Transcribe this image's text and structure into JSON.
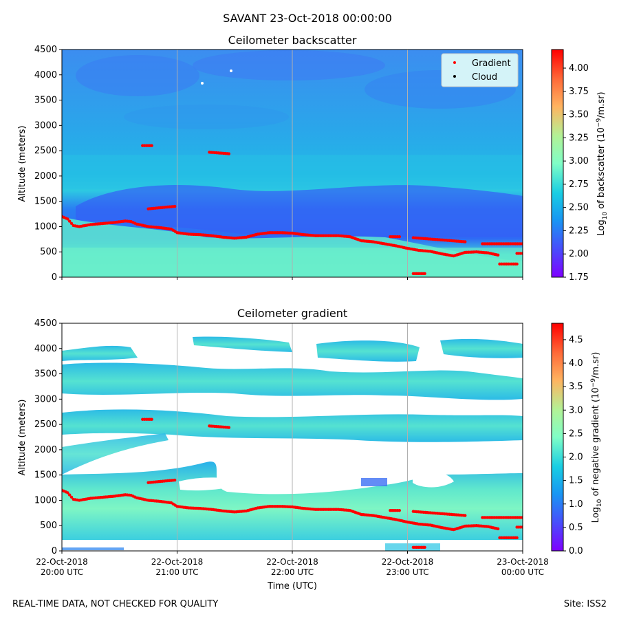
{
  "figure": {
    "title": "SAVANT 23-Oct-2018 00:00:00",
    "footer_left": "REAL-TIME DATA, NOT CHECKED FOR QUALITY",
    "footer_right": "Site: ISS2"
  },
  "chart_data": [
    {
      "type": "heatmap",
      "title": "Ceilometer backscatter",
      "ylabel": "Altitude (meters)",
      "xlabel": "",
      "xlim_hours": [
        20,
        24
      ],
      "ylim": [
        0,
        4500
      ],
      "y_ticks": [
        0,
        500,
        1000,
        1500,
        2000,
        2500,
        3000,
        3500,
        4000,
        4500
      ],
      "x_ticks": [
        {
          "hour": 20,
          "line1": "22-Oct-2018",
          "line2": "20:00 UTC"
        },
        {
          "hour": 21,
          "line1": "22-Oct-2018",
          "line2": "21:00 UTC"
        },
        {
          "hour": 22,
          "line1": "22-Oct-2018",
          "line2": "22:00 UTC"
        },
        {
          "hour": 23,
          "line1": "22-Oct-2018",
          "line2": "23:00 UTC"
        },
        {
          "hour": 24,
          "line1": "23-Oct-2018",
          "line2": "00:00 UTC"
        }
      ],
      "colorbar": {
        "label_prefix": "Log",
        "label_sub": "10",
        "label_rest": " of backscatter (10",
        "label_sup": "−9",
        "label_end": "/m.sr)",
        "range": [
          1.75,
          4.2
        ],
        "ticks": [
          "1.75",
          "2.00",
          "2.25",
          "2.50",
          "2.75",
          "3.00",
          "3.25",
          "3.50",
          "3.75",
          "4.00"
        ],
        "tick_values": [
          1.75,
          2.0,
          2.25,
          2.5,
          2.75,
          3.0,
          3.25,
          3.5,
          3.75,
          4.0
        ]
      },
      "legend": {
        "placement": "top-right",
        "entries": [
          {
            "label": "Gradient",
            "color": "#ff0000"
          },
          {
            "label": "Cloud",
            "color": "#000000"
          }
        ]
      },
      "regions": [
        {
          "name": "upper-sky",
          "t": [
            20,
            24
          ],
          "alt": [
            2300,
            4500
          ],
          "value": 2.4
        },
        {
          "name": "mid-band",
          "t": [
            20,
            24
          ],
          "alt": [
            1700,
            2300
          ],
          "value": 2.65
        },
        {
          "name": "dark-layer",
          "t": [
            20.1,
            24
          ],
          "alt": [
            1000,
            1700
          ],
          "value": 2.15
        },
        {
          "name": "boundary-layer",
          "t": [
            20,
            24
          ],
          "alt": [
            0,
            1000
          ],
          "value": 2.85
        }
      ],
      "gradient_points": [
        [
          20.0,
          1200
        ],
        [
          20.05,
          1150
        ],
        [
          20.1,
          1020
        ],
        [
          20.15,
          1000
        ],
        [
          20.25,
          1040
        ],
        [
          20.35,
          1060
        ],
        [
          20.45,
          1080
        ],
        [
          20.55,
          1110
        ],
        [
          20.6,
          1100
        ],
        [
          20.65,
          1050
        ],
        [
          20.75,
          1000
        ],
        [
          20.85,
          980
        ],
        [
          20.95,
          950
        ],
        [
          21.0,
          880
        ],
        [
          21.1,
          850
        ],
        [
          21.2,
          840
        ],
        [
          21.3,
          820
        ],
        [
          21.4,
          790
        ],
        [
          21.5,
          770
        ],
        [
          21.6,
          790
        ],
        [
          21.7,
          850
        ],
        [
          21.8,
          880
        ],
        [
          21.9,
          880
        ],
        [
          22.0,
          870
        ],
        [
          22.1,
          840
        ],
        [
          22.2,
          820
        ],
        [
          22.3,
          820
        ],
        [
          22.4,
          820
        ],
        [
          22.5,
          800
        ],
        [
          22.6,
          720
        ],
        [
          22.7,
          700
        ],
        [
          22.8,
          660
        ],
        [
          22.9,
          620
        ],
        [
          23.0,
          570
        ],
        [
          23.1,
          530
        ],
        [
          23.2,
          510
        ],
        [
          23.3,
          460
        ],
        [
          23.4,
          420
        ],
        [
          23.5,
          490
        ],
        [
          23.6,
          500
        ],
        [
          23.7,
          480
        ],
        [
          23.8,
          430
        ]
      ],
      "gradient_segments": [
        {
          "t": [
            20.7,
            20.78
          ],
          "alt": 2600
        },
        {
          "t": [
            20.75,
            20.98
          ],
          "alt": [
            1350,
            1400
          ]
        },
        {
          "t": [
            21.28,
            21.45
          ],
          "alt": [
            2470,
            2440
          ]
        },
        {
          "t": [
            22.85,
            22.93
          ],
          "alt": 800
        },
        {
          "t": [
            23.05,
            23.5
          ],
          "alt": [
            780,
            700
          ]
        },
        {
          "t": [
            23.65,
            24.0
          ],
          "alt": [
            660,
            660
          ]
        },
        {
          "t": [
            23.8,
            23.95
          ],
          "alt": 260
        },
        {
          "t": [
            23.95,
            24.0
          ],
          "alt": 470
        },
        {
          "t": [
            23.05,
            23.15
          ],
          "alt": 70
        }
      ]
    },
    {
      "type": "heatmap",
      "title": "Ceilometer gradient",
      "ylabel": "Altitude (meters)",
      "xlabel": "Time (UTC)",
      "xlim_hours": [
        20,
        24
      ],
      "ylim": [
        0,
        4500
      ],
      "y_ticks": [
        0,
        500,
        1000,
        1500,
        2000,
        2500,
        3000,
        3500,
        4000,
        4500
      ],
      "colorbar": {
        "label_prefix": "Log",
        "label_sub": "10",
        "label_rest": " of negative gradient (10",
        "label_sup": "−9",
        "label_end": "/m.sr)",
        "range": [
          0,
          4.85
        ],
        "ticks": [
          "0.0",
          "0.5",
          "1.0",
          "1.5",
          "2.0",
          "2.5",
          "3.0",
          "3.5",
          "4.0",
          "4.5"
        ],
        "tick_values": [
          0,
          0.5,
          1.0,
          1.5,
          2.0,
          2.5,
          3.0,
          3.5,
          4.0,
          4.5
        ]
      },
      "regions": [
        {
          "name": "boundary-layer",
          "t": [
            20,
            24
          ],
          "alt": [
            200,
            1500
          ],
          "value": 1.9
        },
        {
          "name": "surface-gap",
          "t": [
            20,
            24
          ],
          "alt": [
            0,
            200
          ],
          "value": null
        },
        {
          "name": "band-2500",
          "t": [
            20,
            24
          ],
          "alt": [
            2300,
            2800
          ],
          "value": 2.0
        },
        {
          "name": "band-3300",
          "t": [
            20,
            24
          ],
          "alt": [
            3100,
            3600
          ],
          "value": 1.85
        },
        {
          "name": "band-4100",
          "t": [
            20,
            24
          ],
          "alt": [
            3900,
            4300
          ],
          "value": 1.8
        }
      ],
      "gradient_points_ref": "same as backscatter panel"
    }
  ]
}
